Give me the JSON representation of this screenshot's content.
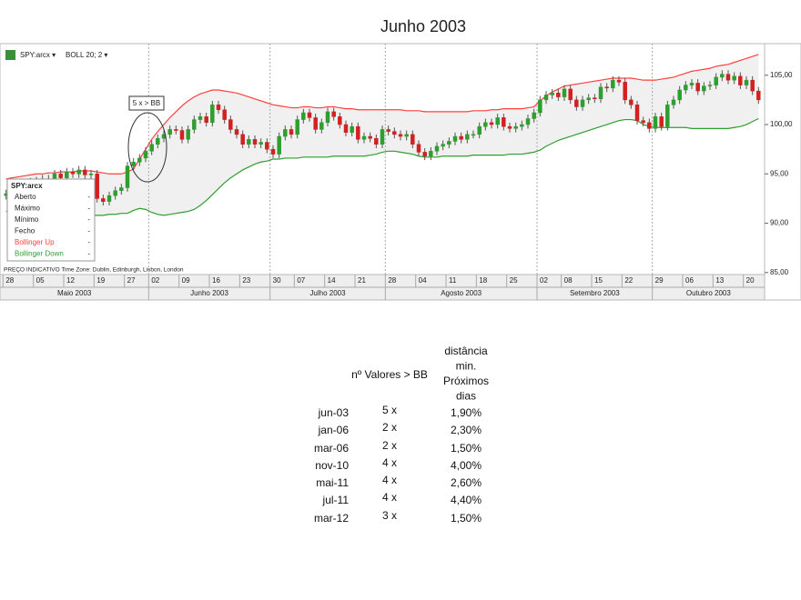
{
  "chart_data": {
    "type": "candlestick",
    "title": "Junho 2003",
    "toolbar": [
      "SPY:arcx ▾",
      "BOLL 20; 2 ▾"
    ],
    "footnote": "PREÇO INDICATIVO   Time Zone: Dublin, Edinburgh, Lisbon, London",
    "annotation": "5 x > BB",
    "ylim": [
      84.8,
      108.2
    ],
    "yticks": [
      {
        "value": 85,
        "label": "85,00"
      },
      {
        "value": 90,
        "label": "90,00"
      },
      {
        "value": 95,
        "label": "95,00"
      },
      {
        "value": 100,
        "label": "100,00"
      },
      {
        "value": 105,
        "label": "105,00"
      }
    ],
    "xticks": [
      {
        "index": 0,
        "label": "28"
      },
      {
        "index": 5,
        "label": "05"
      },
      {
        "index": 10,
        "label": "12"
      },
      {
        "index": 15,
        "label": "19"
      },
      {
        "index": 20,
        "label": "27"
      },
      {
        "index": 24,
        "label": "02"
      },
      {
        "index": 29,
        "label": "09"
      },
      {
        "index": 34,
        "label": "16"
      },
      {
        "index": 39,
        "label": "23"
      },
      {
        "index": 44,
        "label": "30"
      },
      {
        "index": 48,
        "label": "07"
      },
      {
        "index": 53,
        "label": "14"
      },
      {
        "index": 58,
        "label": "21"
      },
      {
        "index": 63,
        "label": "28"
      },
      {
        "index": 68,
        "label": "04"
      },
      {
        "index": 73,
        "label": "11"
      },
      {
        "index": 78,
        "label": "18"
      },
      {
        "index": 83,
        "label": "25"
      },
      {
        "index": 88,
        "label": "02"
      },
      {
        "index": 92,
        "label": "08"
      },
      {
        "index": 97,
        "label": "15"
      },
      {
        "index": 102,
        "label": "22"
      },
      {
        "index": 107,
        "label": "29"
      },
      {
        "index": 112,
        "label": "06"
      },
      {
        "index": 117,
        "label": "13"
      },
      {
        "index": 122,
        "label": "20"
      }
    ],
    "months": [
      {
        "index": 0,
        "label": "Maio 2003"
      },
      {
        "index": 24,
        "label": "Junho 2003"
      },
      {
        "index": 44,
        "label": "Julho 2003"
      },
      {
        "index": 63,
        "label": "Agosto 2003"
      },
      {
        "index": 88,
        "label": "Setembro 2003"
      },
      {
        "index": 107,
        "label": "Outubro 2003"
      }
    ],
    "series": [
      {
        "name": "SPY:arcx",
        "up_color": "#2e9e2e",
        "down_color": "#d42020",
        "open": [
          92.8,
          93.0,
          93.3,
          93.6,
          93.8,
          94.2,
          94.3,
          94.5,
          94.0,
          95.0,
          94.6,
          95.2,
          95.0,
          95.4,
          94.9,
          95.0,
          92.5,
          92.2,
          92.8,
          93.3,
          93.6,
          95.8,
          96.2,
          96.6,
          97.3,
          98.0,
          98.6,
          99.0,
          99.5,
          99.4,
          98.5,
          99.5,
          100.5,
          100.8,
          100.2,
          102.0,
          101.5,
          100.5,
          99.5,
          99.0,
          98.0,
          98.5,
          98.0,
          98.2,
          97.5,
          97.0,
          98.8,
          99.5,
          99.0,
          100.5,
          101.2,
          100.7,
          99.5,
          100.2,
          101.3,
          100.8,
          100.0,
          99.2,
          99.8,
          98.5,
          98.8,
          98.6,
          98.0,
          99.5,
          99.3,
          99.0,
          98.8,
          99.0,
          98.0,
          97.2,
          96.8,
          97.3,
          97.8,
          98.0,
          98.3,
          98.8,
          98.5,
          99.0,
          99.0,
          99.8,
          100.2,
          100.0,
          100.7,
          99.8,
          99.6,
          99.8,
          100.0,
          100.6,
          101.2,
          102.5,
          103.0,
          103.2,
          102.8,
          103.6,
          102.5,
          101.8,
          102.5,
          102.7,
          102.6,
          103.8,
          103.7,
          104.5,
          104.3,
          102.5,
          102.0,
          100.4,
          100.2,
          99.6,
          100.8,
          99.8,
          102.0,
          102.5,
          103.5,
          104.0,
          104.2,
          103.4,
          103.9,
          104.0,
          104.8,
          105.1,
          104.5,
          104.9,
          104.0,
          104.5,
          103.4
        ],
        "high": [
          93.4,
          93.7,
          94.0,
          94.2,
          94.6,
          94.7,
          94.9,
          94.9,
          95.4,
          95.4,
          95.6,
          95.6,
          95.8,
          95.8,
          95.4,
          95.4,
          92.9,
          93.2,
          93.7,
          94.0,
          96.2,
          96.6,
          97.0,
          97.7,
          98.4,
          99.0,
          99.4,
          99.9,
          99.9,
          99.8,
          99.9,
          100.9,
          101.2,
          101.2,
          102.4,
          102.4,
          101.9,
          100.9,
          99.9,
          99.4,
          98.9,
          98.9,
          98.6,
          98.6,
          97.9,
          99.2,
          99.9,
          99.9,
          100.9,
          101.6,
          101.6,
          101.1,
          100.6,
          101.7,
          101.7,
          101.2,
          100.4,
          100.2,
          100.2,
          99.2,
          99.2,
          99.0,
          99.9,
          99.9,
          99.7,
          99.4,
          99.4,
          99.4,
          98.4,
          97.6,
          97.7,
          98.2,
          98.4,
          98.7,
          99.2,
          99.2,
          99.4,
          99.4,
          100.2,
          100.6,
          100.6,
          101.1,
          101.1,
          100.2,
          100.2,
          100.4,
          101.0,
          101.6,
          102.9,
          103.4,
          103.6,
          103.6,
          104.0,
          104.0,
          102.9,
          102.9,
          103.1,
          103.1,
          104.2,
          104.2,
          104.9,
          104.9,
          104.7,
          102.9,
          102.4,
          100.8,
          100.6,
          101.2,
          101.2,
          102.4,
          102.9,
          103.9,
          104.4,
          104.6,
          104.6,
          104.3,
          104.4,
          105.2,
          105.5,
          105.5,
          105.3,
          105.3,
          104.9,
          104.9,
          103.8
        ],
        "low": [
          92.4,
          92.6,
          92.9,
          93.2,
          93.4,
          93.8,
          93.9,
          93.6,
          93.6,
          94.2,
          94.2,
          94.6,
          94.6,
          94.5,
          94.5,
          92.1,
          91.8,
          91.8,
          92.4,
          92.9,
          93.2,
          95.4,
          95.8,
          96.2,
          96.9,
          97.6,
          98.2,
          98.6,
          99.0,
          98.1,
          98.1,
          99.1,
          100.1,
          99.8,
          99.8,
          101.1,
          100.1,
          99.1,
          98.6,
          97.6,
          97.6,
          97.6,
          97.6,
          97.1,
          96.6,
          96.6,
          98.4,
          98.6,
          98.6,
          100.1,
          100.3,
          99.1,
          99.1,
          99.8,
          100.4,
          99.6,
          98.8,
          98.8,
          98.1,
          98.1,
          98.2,
          97.6,
          97.6,
          98.9,
          98.6,
          98.4,
          98.4,
          97.6,
          96.8,
          96.4,
          96.4,
          96.9,
          97.4,
          97.6,
          97.9,
          98.1,
          98.1,
          98.6,
          98.6,
          99.4,
          99.6,
          99.6,
          99.4,
          99.2,
          99.2,
          99.4,
          99.6,
          100.2,
          100.8,
          102.1,
          102.6,
          102.4,
          102.4,
          102.1,
          101.4,
          101.4,
          102.1,
          102.2,
          102.2,
          103.3,
          103.3,
          103.9,
          102.1,
          101.6,
          100.0,
          99.8,
          99.2,
          99.2,
          99.4,
          99.4,
          101.6,
          102.1,
          103.1,
          103.6,
          103.0,
          103.0,
          103.5,
          103.6,
          104.4,
          104.1,
          104.1,
          103.6,
          103.6,
          103.0,
          102.1
        ],
        "close": [
          93.0,
          93.3,
          93.6,
          93.8,
          94.2,
          94.3,
          94.5,
          94.0,
          95.0,
          94.6,
          95.2,
          95.0,
          95.4,
          94.9,
          95.0,
          92.5,
          92.2,
          92.8,
          93.3,
          93.6,
          95.8,
          96.2,
          96.6,
          97.3,
          98.0,
          98.6,
          99.0,
          99.5,
          99.4,
          98.5,
          99.5,
          100.5,
          100.8,
          100.2,
          102.0,
          101.5,
          100.5,
          99.5,
          99.0,
          98.0,
          98.5,
          98.0,
          98.2,
          97.5,
          97.0,
          98.8,
          99.5,
          99.0,
          100.5,
          101.2,
          100.7,
          99.5,
          100.2,
          101.3,
          100.8,
          100.0,
          99.2,
          99.8,
          98.5,
          98.8,
          98.6,
          98.0,
          99.5,
          99.3,
          99.0,
          98.8,
          99.0,
          98.0,
          97.2,
          96.8,
          97.3,
          97.8,
          98.0,
          98.3,
          98.8,
          98.5,
          99.0,
          99.0,
          99.8,
          100.2,
          100.0,
          100.7,
          99.8,
          99.6,
          99.8,
          100.0,
          100.6,
          101.2,
          102.5,
          103.0,
          103.2,
          102.8,
          103.6,
          102.5,
          101.8,
          102.5,
          102.7,
          102.6,
          103.8,
          103.7,
          104.5,
          104.3,
          102.5,
          102.0,
          100.4,
          100.2,
          99.6,
          100.8,
          99.8,
          102.0,
          102.5,
          103.5,
          104.0,
          104.2,
          103.4,
          103.9,
          104.0,
          104.8,
          105.1,
          104.5,
          104.9,
          104.0,
          104.5,
          103.4,
          102.5
        ]
      }
    ],
    "legend": {
      "title": "SPY:arcx",
      "rows": [
        {
          "label": "Aberto",
          "value": "-"
        },
        {
          "label": "Máximo",
          "value": "-"
        },
        {
          "label": "Mínimo",
          "value": "-"
        },
        {
          "label": "Fecho",
          "value": "-"
        }
      ]
    },
    "bands": [
      {
        "name": "Bollinger Up",
        "color": "#ff4040",
        "legend_value": "-",
        "values": [
          94.5,
          94.6,
          94.7,
          94.8,
          94.9,
          95.0,
          95.0,
          95.1,
          95.1,
          95.2,
          95.2,
          95.2,
          95.3,
          95.3,
          95.3,
          95.2,
          95.1,
          95.0,
          95.0,
          95.0,
          95.2,
          95.5,
          96.5,
          97.5,
          98.5,
          99.3,
          100.0,
          100.7,
          101.3,
          101.9,
          102.4,
          102.8,
          103.1,
          103.3,
          103.5,
          103.5,
          103.4,
          103.3,
          103.2,
          103.0,
          102.8,
          102.6,
          102.4,
          102.2,
          102.0,
          101.9,
          101.8,
          101.7,
          101.7,
          101.8,
          101.8,
          101.7,
          101.7,
          101.8,
          101.8,
          101.7,
          101.6,
          101.6,
          101.5,
          101.5,
          101.5,
          101.5,
          101.5,
          101.5,
          101.5,
          101.5,
          101.4,
          101.4,
          101.4,
          101.3,
          101.3,
          101.3,
          101.3,
          101.3,
          101.3,
          101.3,
          101.3,
          101.4,
          101.4,
          101.4,
          101.5,
          101.5,
          101.6,
          101.6,
          101.6,
          101.6,
          101.7,
          101.8,
          102.4,
          102.9,
          103.3,
          103.6,
          103.9,
          104.0,
          104.1,
          104.2,
          104.3,
          104.4,
          104.5,
          104.6,
          104.7,
          104.7,
          104.7,
          104.7,
          104.6,
          104.5,
          104.5,
          104.5,
          104.6,
          104.7,
          104.8,
          105.0,
          105.2,
          105.4,
          105.5,
          105.6,
          105.7,
          105.9,
          106.0,
          106.1,
          106.3,
          106.5,
          106.7,
          106.9,
          107.1
        ]
      },
      {
        "name": "Bollinger Down",
        "color": "#2e9e2e",
        "legend_value": "-",
        "values": [
          91.2,
          91.2,
          91.1,
          91.1,
          91.0,
          91.0,
          91.0,
          90.9,
          90.9,
          90.9,
          90.8,
          90.8,
          90.8,
          90.8,
          90.8,
          90.8,
          90.8,
          90.9,
          90.9,
          91.0,
          91.0,
          91.3,
          91.5,
          91.4,
          91.1,
          90.9,
          90.8,
          90.9,
          91.0,
          91.1,
          91.2,
          91.4,
          91.8,
          92.3,
          92.9,
          93.5,
          94.1,
          94.6,
          95.0,
          95.4,
          95.7,
          96.0,
          96.2,
          96.3,
          96.5,
          96.5,
          96.6,
          96.6,
          96.6,
          96.7,
          96.7,
          96.7,
          96.7,
          96.7,
          96.8,
          96.8,
          96.8,
          96.8,
          96.8,
          96.8,
          96.9,
          97.0,
          97.2,
          97.3,
          97.3,
          97.2,
          97.1,
          97.0,
          96.8,
          96.7,
          96.7,
          96.7,
          96.8,
          96.8,
          96.8,
          96.8,
          96.8,
          96.9,
          96.9,
          96.9,
          96.9,
          96.9,
          96.9,
          97.0,
          97.0,
          97.0,
          97.1,
          97.2,
          97.4,
          97.8,
          98.1,
          98.4,
          98.6,
          98.8,
          99.0,
          99.2,
          99.4,
          99.6,
          99.8,
          100.0,
          100.2,
          100.4,
          100.5,
          100.5,
          100.4,
          100.0,
          99.8,
          99.7,
          99.7,
          99.7,
          99.7,
          99.7,
          99.7,
          99.6,
          99.6,
          99.6,
          99.6,
          99.6,
          99.6,
          99.6,
          99.7,
          99.8,
          100.0,
          100.3,
          100.6
        ]
      }
    ]
  },
  "table": {
    "header": [
      "nº Valores > BB",
      "distância min. Próximos dias"
    ],
    "rows": [
      [
        "jun-03",
        "5 x",
        "1,90%"
      ],
      [
        "jan-06",
        "2 x",
        "2,30%"
      ],
      [
        "mar-06",
        "2 x",
        "1,50%"
      ],
      [
        "nov-10",
        "4 x",
        "4,00%"
      ],
      [
        "mai-11",
        "4 x",
        "2,60%"
      ],
      [
        "jul-11",
        "4 x",
        "4,40%"
      ],
      [
        "mar-12",
        "3 x",
        "1,50%"
      ]
    ]
  }
}
